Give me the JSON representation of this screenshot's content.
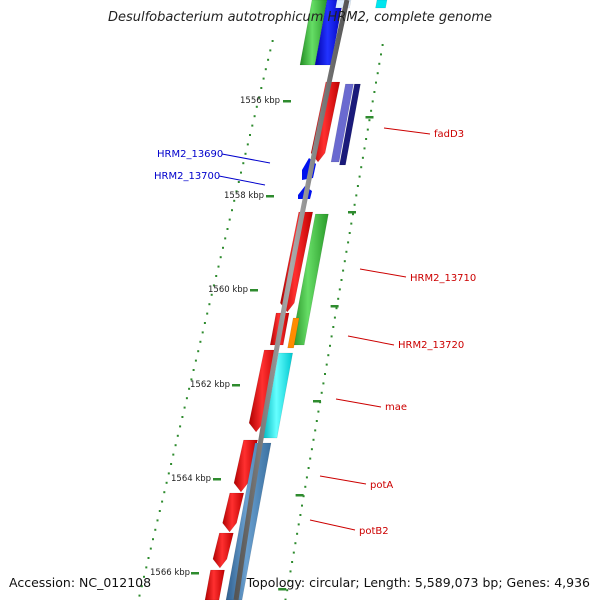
{
  "title": "Desulfobacterium autotrophicum HRM2, complete genome",
  "accession": "Accession: NC_012108",
  "topology": "Topology: circular; Length: 5,589,073 bp; Genes: 4,936",
  "colors": {
    "backbone": "#777777",
    "tick": "#2e8b2e",
    "forward_label": "#cc0000",
    "reverse_label": "#0000cc",
    "red": "#ee1111",
    "green": "#33bb33",
    "blue": "#0011ee",
    "navy": "#1a1a7a",
    "slate": "#6a6ad0",
    "cyan": "#00e5ee",
    "orange": "#ff8c00",
    "steel": "#4682b4"
  },
  "ticks": {
    "labels": [
      "1556 kbp",
      "1558 kbp",
      "1560 kbp",
      "1562 kbp",
      "1564 kbp",
      "1566 kbp"
    ]
  },
  "gene_labels": [
    {
      "text": "fadD3",
      "strand": "forward"
    },
    {
      "text": "HRM2_13690",
      "strand": "reverse"
    },
    {
      "text": "HRM2_13700",
      "strand": "reverse"
    },
    {
      "text": "HRM2_13710",
      "strand": "forward"
    },
    {
      "text": "HRM2_13720",
      "strand": "forward"
    },
    {
      "text": "mae",
      "strand": "forward"
    },
    {
      "text": "potA",
      "strand": "forward"
    },
    {
      "text": "potB2",
      "strand": "forward"
    }
  ]
}
